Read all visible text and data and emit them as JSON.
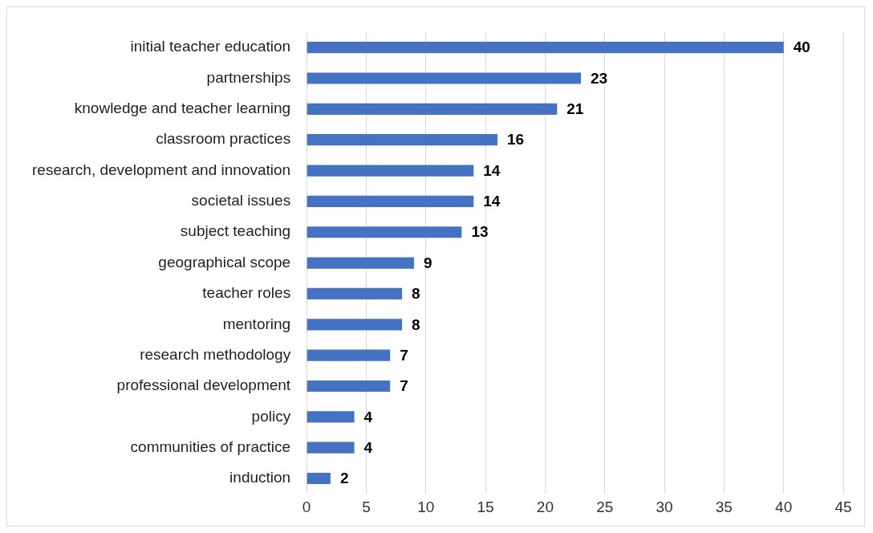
{
  "chart_data": {
    "type": "bar",
    "orientation": "horizontal",
    "categories": [
      "initial teacher education",
      "partnerships",
      "knowledge and teacher learning",
      "classroom practices",
      "research, development and innovation",
      "societal issues",
      "subject teaching",
      "geographical scope",
      "teacher roles",
      "mentoring",
      "research methodology",
      "professional development",
      "policy",
      "communities of practice",
      "induction"
    ],
    "values": [
      40,
      23,
      21,
      16,
      14,
      14,
      13,
      9,
      8,
      8,
      7,
      7,
      4,
      4,
      2
    ],
    "color": "#4472c4",
    "xlim": [
      0,
      45
    ],
    "xticks": [
      0,
      5,
      10,
      15,
      20,
      25,
      30,
      35,
      40,
      45
    ],
    "grid": "x",
    "data_labels": true
  }
}
